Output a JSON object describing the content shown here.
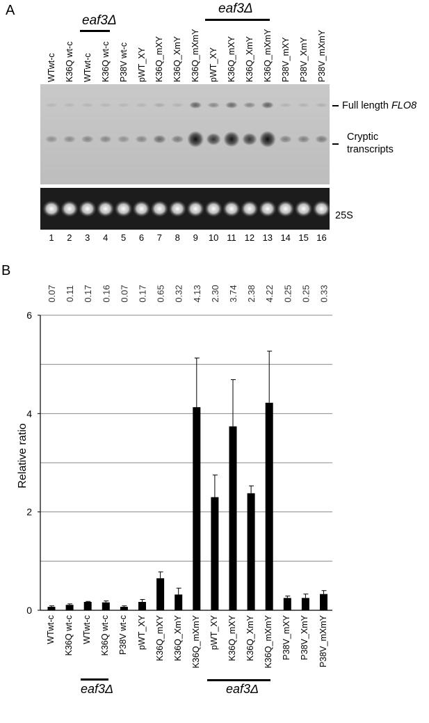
{
  "panel_a": {
    "letter": "A",
    "lane_labels": [
      "WTwt-c",
      "K36Q wt-c",
      "WTwt-c",
      "K36Q wt-c",
      "P38V wt-c",
      "pWT_XY",
      "K36Q_mXY",
      "K36Q_XmY",
      "K36Q_mXmY",
      "pWT_XY",
      "K36Q_mXY",
      "K36Q_XmY",
      "K36Q_mXmY",
      "P38V_mXY",
      "P38V_XmY",
      "P38V_mXmY"
    ],
    "lane_numbers": [
      "1",
      "2",
      "3",
      "4",
      "5",
      "6",
      "7",
      "8",
      "9",
      "10",
      "11",
      "12",
      "13",
      "14",
      "15",
      "16"
    ],
    "group_label": "eaf3Δ",
    "full_length_label": "Full length ",
    "full_length_gene": "FLO8",
    "cryptic_label_line1": "Cryptic",
    "cryptic_label_line2": "transcripts",
    "rrna_label": "25S"
  },
  "panel_b": {
    "letter": "B",
    "ylabel": "Relative ratio",
    "value_labels": [
      "0.07",
      "0.11",
      "0.17",
      "0.16",
      "0.07",
      "0.17",
      "0.65",
      "0.32",
      "4.13",
      "2.30",
      "3.74",
      "2.38",
      "4.22",
      "0.25",
      "0.25",
      "0.33"
    ],
    "group_label": "eaf3Δ"
  },
  "chart_data": {
    "type": "bar",
    "categories": [
      "WTwt-c",
      "K36Q wt-c",
      "WTwt-c",
      "K36Q wt-c",
      "P38V wt-c",
      "pWT_XY",
      "K36Q_mXY",
      "K36Q_XmY",
      "K36Q_mXmY",
      "pWT_XY",
      "K36Q_mXY",
      "K36Q_XmY",
      "K36Q_mXmY",
      "P38V_mXY",
      "P38V_XmY",
      "P38V_mXmY"
    ],
    "values": [
      0.07,
      0.11,
      0.17,
      0.16,
      0.07,
      0.17,
      0.65,
      0.32,
      4.13,
      2.3,
      3.74,
      2.38,
      4.22,
      0.25,
      0.25,
      0.33
    ],
    "errors": [
      0.02,
      0.02,
      0.01,
      0.03,
      0.02,
      0.05,
      0.13,
      0.13,
      1.0,
      0.45,
      0.95,
      0.15,
      1.05,
      0.04,
      0.08,
      0.07
    ],
    "ylabel": "Relative ratio",
    "ylim": [
      0,
      6
    ],
    "yticks": [
      0,
      2,
      4,
      6
    ],
    "grid": true,
    "bar_color": "#000000"
  }
}
